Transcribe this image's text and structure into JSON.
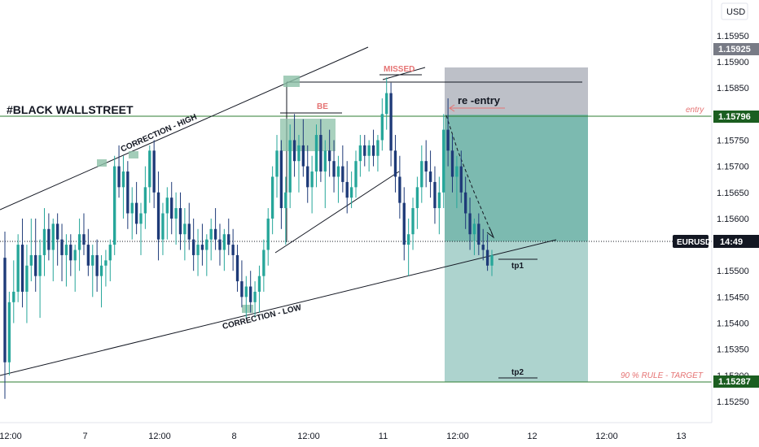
{
  "chart_data": {
    "type": "candlestick",
    "title": "#BLACK WALLSTREET",
    "symbol": "EURUSD",
    "currency": "USD",
    "countdown": "14:49",
    "price_axis_ticks": [
      "1.15950",
      "1.15900",
      "1.15850",
      "1.15750",
      "1.15700",
      "1.15650",
      "1.15600",
      "1.15500",
      "1.15450",
      "1.15400",
      "1.15350",
      "1.15300",
      "1.15250"
    ],
    "time_axis_ticks": [
      "12:00",
      "7",
      "12:00",
      "8",
      "12:00",
      "11",
      "12:00",
      "12",
      "12:00",
      "13"
    ],
    "price_markers": {
      "upper_gray": "1.15925",
      "entry": "1.15796",
      "target": "1.15287"
    },
    "annotations": {
      "correction_high": "CORRECTION - HIGH",
      "correction_low": "CORRECTION - LOW",
      "be": "BE",
      "missed": "MISSED",
      "re_entry": "re -entry",
      "entry": "entry",
      "tp1": "tp1",
      "tp2": "tp2",
      "target_rule": "90 % RULE - TARGET"
    },
    "position": {
      "entry_price": 1.15796,
      "stop_price": 1.1589,
      "target_price": 1.15287,
      "current_price": 1.1551
    },
    "ohlc": [
      [
        1.15525,
        1.15575,
        1.15255,
        1.15325
      ],
      [
        1.15325,
        1.1546,
        1.153,
        1.1544
      ],
      [
        1.1544,
        1.1552,
        1.154,
        1.1546
      ],
      [
        1.1546,
        1.1557,
        1.1544,
        1.1555
      ],
      [
        1.1555,
        1.156,
        1.1543,
        1.1546
      ],
      [
        1.1546,
        1.1555,
        1.154,
        1.1551
      ],
      [
        1.1551,
        1.156,
        1.1548,
        1.1553
      ],
      [
        1.1553,
        1.156,
        1.1546,
        1.1549
      ],
      [
        1.1549,
        1.1556,
        1.1541,
        1.1553
      ],
      [
        1.1553,
        1.1562,
        1.1549,
        1.1558
      ],
      [
        1.1558,
        1.1561,
        1.1552,
        1.1554
      ],
      [
        1.1554,
        1.156,
        1.1548,
        1.1559
      ],
      [
        1.1559,
        1.1561,
        1.1551,
        1.1556
      ],
      [
        1.1556,
        1.1559,
        1.1548,
        1.1553
      ],
      [
        1.1553,
        1.1557,
        1.1547,
        1.1555
      ],
      [
        1.1555,
        1.1557,
        1.1549,
        1.1552
      ],
      [
        1.1552,
        1.1555,
        1.1546,
        1.1554
      ],
      [
        1.1554,
        1.156,
        1.155,
        1.1557
      ],
      [
        1.1557,
        1.1561,
        1.1553,
        1.1555
      ],
      [
        1.1555,
        1.1558,
        1.1549,
        1.1551
      ],
      [
        1.1551,
        1.1555,
        1.1545,
        1.1553
      ],
      [
        1.1553,
        1.1556,
        1.1546,
        1.1549
      ],
      [
        1.1549,
        1.1553,
        1.1543,
        1.1551
      ],
      [
        1.1551,
        1.1554,
        1.1547,
        1.1552
      ],
      [
        1.1552,
        1.1556,
        1.1548,
        1.1555
      ],
      [
        1.1555,
        1.1572,
        1.1553,
        1.157
      ],
      [
        1.157,
        1.1574,
        1.1564,
        1.1566
      ],
      [
        1.1566,
        1.1572,
        1.156,
        1.1569
      ],
      [
        1.1569,
        1.1571,
        1.1558,
        1.1561
      ],
      [
        1.1561,
        1.1566,
        1.1556,
        1.1563
      ],
      [
        1.1563,
        1.1567,
        1.1557,
        1.1559
      ],
      [
        1.1559,
        1.1563,
        1.1553,
        1.1561
      ],
      [
        1.1561,
        1.157,
        1.1558,
        1.1566
      ],
      [
        1.1566,
        1.1574,
        1.1563,
        1.1573
      ],
      [
        1.1573,
        1.1575,
        1.1562,
        1.1565
      ],
      [
        1.1565,
        1.1569,
        1.1552,
        1.1556
      ],
      [
        1.1556,
        1.1563,
        1.1553,
        1.1561
      ],
      [
        1.1561,
        1.1566,
        1.1556,
        1.1564
      ],
      [
        1.1564,
        1.1567,
        1.1557,
        1.156
      ],
      [
        1.156,
        1.1565,
        1.1555,
        1.1562
      ],
      [
        1.1562,
        1.1565,
        1.1554,
        1.1557
      ],
      [
        1.1557,
        1.1562,
        1.1552,
        1.1559
      ],
      [
        1.1559,
        1.1563,
        1.1554,
        1.1556
      ],
      [
        1.1556,
        1.156,
        1.155,
        1.1553
      ],
      [
        1.1553,
        1.1558,
        1.1549,
        1.1555
      ],
      [
        1.1555,
        1.1559,
        1.1551,
        1.1554
      ],
      [
        1.1554,
        1.1557,
        1.1549,
        1.1556
      ],
      [
        1.1556,
        1.156,
        1.1552,
        1.1558
      ],
      [
        1.1558,
        1.1562,
        1.1554,
        1.1556
      ],
      [
        1.1556,
        1.1559,
        1.1551,
        1.1554
      ],
      [
        1.1554,
        1.1558,
        1.155,
        1.1557
      ],
      [
        1.1557,
        1.156,
        1.1553,
        1.1555
      ],
      [
        1.1555,
        1.1558,
        1.155,
        1.1553
      ],
      [
        1.1553,
        1.1555,
        1.1546,
        1.1548
      ],
      [
        1.1548,
        1.1552,
        1.1543,
        1.1545
      ],
      [
        1.1545,
        1.1549,
        1.1541,
        1.1547
      ],
      [
        1.1547,
        1.155,
        1.1542,
        1.1544
      ],
      [
        1.1544,
        1.1548,
        1.1541,
        1.1546
      ],
      [
        1.1546,
        1.1551,
        1.1542,
        1.1549
      ],
      [
        1.1549,
        1.1556,
        1.1546,
        1.1554
      ],
      [
        1.1554,
        1.1562,
        1.1551,
        1.156
      ],
      [
        1.156,
        1.157,
        1.1557,
        1.1568
      ],
      [
        1.1568,
        1.1576,
        1.1564,
        1.1573
      ],
      [
        1.1573,
        1.1575,
        1.1558,
        1.1562
      ],
      [
        1.1562,
        1.1568,
        1.1555,
        1.1565
      ],
      [
        1.1565,
        1.1578,
        1.1562,
        1.1575
      ],
      [
        1.1575,
        1.158,
        1.1568,
        1.1571
      ],
      [
        1.1571,
        1.1576,
        1.1565,
        1.1574
      ],
      [
        1.1574,
        1.1579,
        1.1568,
        1.157
      ],
      [
        1.157,
        1.1574,
        1.1563,
        1.1566
      ],
      [
        1.1566,
        1.1572,
        1.1561,
        1.1569
      ],
      [
        1.1569,
        1.1578,
        1.1566,
        1.1576
      ],
      [
        1.1576,
        1.1579,
        1.1567,
        1.1569
      ],
      [
        1.1569,
        1.1575,
        1.1562,
        1.1573
      ],
      [
        1.1573,
        1.1577,
        1.1568,
        1.1571
      ],
      [
        1.1571,
        1.1575,
        1.1565,
        1.1568
      ],
      [
        1.1568,
        1.1572,
        1.1563,
        1.157
      ],
      [
        1.157,
        1.1574,
        1.1565,
        1.1567
      ],
      [
        1.1567,
        1.1571,
        1.1561,
        1.1564
      ],
      [
        1.1564,
        1.1569,
        1.1562,
        1.1566
      ],
      [
        1.1566,
        1.1573,
        1.1564,
        1.1571
      ],
      [
        1.1571,
        1.1576,
        1.1568,
        1.1574
      ],
      [
        1.1574,
        1.1576,
        1.157,
        1.1572
      ],
      [
        1.1572,
        1.1575,
        1.1569,
        1.1574
      ],
      [
        1.1574,
        1.1577,
        1.157,
        1.1572
      ],
      [
        1.1572,
        1.1576,
        1.1569,
        1.1575
      ],
      [
        1.1575,
        1.1583,
        1.1573,
        1.158
      ],
      [
        1.158,
        1.1587,
        1.1577,
        1.1584
      ],
      [
        1.1584,
        1.1586,
        1.157,
        1.1573
      ],
      [
        1.1573,
        1.1576,
        1.1565,
        1.1568
      ],
      [
        1.1568,
        1.1572,
        1.156,
        1.1563
      ],
      [
        1.1563,
        1.1566,
        1.1552,
        1.1555
      ],
      [
        1.1555,
        1.156,
        1.1549,
        1.1557
      ],
      [
        1.1557,
        1.1564,
        1.1554,
        1.1562
      ],
      [
        1.1562,
        1.1568,
        1.1558,
        1.1566
      ],
      [
        1.1566,
        1.1574,
        1.1563,
        1.1571
      ],
      [
        1.1571,
        1.1575,
        1.1566,
        1.1569
      ],
      [
        1.1569,
        1.1573,
        1.1564,
        1.1567
      ],
      [
        1.1567,
        1.157,
        1.1559,
        1.1562
      ],
      [
        1.1562,
        1.1568,
        1.1557,
        1.1565
      ],
      [
        1.1565,
        1.158,
        1.1562,
        1.1577
      ],
      [
        1.1577,
        1.1583,
        1.157,
        1.1573
      ],
      [
        1.1573,
        1.1576,
        1.1565,
        1.1568
      ],
      [
        1.1568,
        1.1572,
        1.1562,
        1.157
      ],
      [
        1.157,
        1.1573,
        1.1563,
        1.1565
      ],
      [
        1.1565,
        1.1568,
        1.1558,
        1.1561
      ],
      [
        1.1561,
        1.1564,
        1.1554,
        1.1557
      ],
      [
        1.1557,
        1.156,
        1.1553,
        1.1559
      ],
      [
        1.1559,
        1.1561,
        1.1553,
        1.1555
      ],
      [
        1.1555,
        1.1558,
        1.1552,
        1.1554
      ],
      [
        1.1554,
        1.1557,
        1.155,
        1.1551
      ],
      [
        1.1551,
        1.1554,
        1.1549,
        1.1553
      ]
    ]
  }
}
